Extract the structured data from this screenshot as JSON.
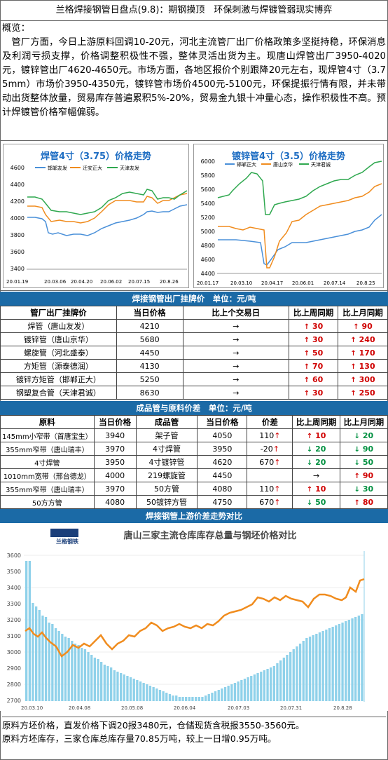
{
  "title": "兰格焊接钢管日盘点(9.8)：期钢摸顶　环保刺激与焊镀管弱现实博弈",
  "overview_label": "概览：",
  "overview_text": "　管厂方面，今日上游原料回调10-20元，河北主流管厂出厂价格政策多坚挺持稳，环保消息及利润亏损支撑，价格调整积极性不强，整体灵活出货为主。现唐山焊管出厂3950-4020元，镀锌管出厂4620-4650元。市场方面，各地区报价个别跟降20元左右，现焊管4寸（3.75mm）市场价3950-4350元，镀锌管市场价4500元-5100元，环保提振行情有限，并未带动出货整体放量，贸易库存普遍累积5%-20%，贸易金九银十冲量心态，操作积极性不高。预计焊镀管价格窄幅偏弱。",
  "chart1": {
    "title": "焊管4寸（3.75）价格走势",
    "legend": [
      "邯郸友发",
      "迁安正大",
      "天津友发"
    ],
    "colors": [
      "#4a90d9",
      "#f08c1e",
      "#2fa84f"
    ],
    "yticks": [
      "4600",
      "4400",
      "4200",
      "4000",
      "3800",
      "3600",
      "3400"
    ],
    "xticks": [
      "20.01.19",
      "20.03.06",
      "20.04.20",
      "20.06.02",
      "20.07.15",
      "20.8.26"
    ]
  },
  "chart2": {
    "title": "镀锌管4寸（3.5）价格走势",
    "legend": [
      "邯郸正大",
      "唐山京华",
      "天津君诚"
    ],
    "colors": [
      "#4a90d9",
      "#f08c1e",
      "#2fa84f"
    ],
    "yticks": [
      "6000",
      "5800",
      "5600",
      "5400",
      "5200",
      "5000",
      "4800",
      "4600",
      "4400"
    ],
    "xticks": [
      "20.01.17",
      "20.03.10",
      "20.04.17",
      "20.06.01",
      "20.07.14",
      "20.8.25"
    ]
  },
  "bar1": "焊接钢管出厂挂牌价　单位：元/吨",
  "table1": {
    "headers": [
      "管厂出厂挂牌价",
      "当日价格",
      "比上个交易日",
      "比上周同期",
      "比上月同期"
    ],
    "rows": [
      {
        "name": "焊管（唐山友发）",
        "price": "4210",
        "day": "→",
        "week": "30",
        "month": "90",
        "wd": "up",
        "md": "up"
      },
      {
        "name": "镀锌管（唐山京华）",
        "price": "5680",
        "day": "→",
        "week": "30",
        "month": "240",
        "wd": "up",
        "md": "up"
      },
      {
        "name": "螺旋管（河北盛泰）",
        "price": "4450",
        "day": "→",
        "week": "50",
        "month": "170",
        "wd": "up",
        "md": "up"
      },
      {
        "name": "方矩管（源泰德润）",
        "price": "4130",
        "day": "→",
        "week": "70",
        "month": "130",
        "wd": "up",
        "md": "up"
      },
      {
        "name": "镀锌方矩管（邯郸正大）",
        "price": "5250",
        "day": "→",
        "week": "60",
        "month": "300",
        "wd": "up",
        "md": "up"
      },
      {
        "name": "钢塑复合管（天津君诚）",
        "price": "8630",
        "day": "→",
        "week": "30",
        "month": "250",
        "wd": "up",
        "md": "up"
      }
    ]
  },
  "bar2": "成品管与原料价差　单位：元/吨",
  "table2": {
    "headers": [
      "原料",
      "当日价格",
      "成品管",
      "当日价格",
      "价差",
      "比上周同期",
      "比上月同期"
    ],
    "rows": [
      {
        "raw": "145mm小窄带（首唐宝生）",
        "rp": "3940",
        "prod": "架子管",
        "pp": "4050",
        "diff": "110",
        "dd": "up",
        "week": "10",
        "wd": "up",
        "month": "20",
        "md": "dn"
      },
      {
        "raw": "355mm窄带（唐山瑞丰）",
        "rp": "3970",
        "prod": "4寸焊管",
        "pp": "3950",
        "diff": "-20",
        "dd": "up",
        "week": "20",
        "wd": "dn",
        "month": "90",
        "md": "dn"
      },
      {
        "raw": "4寸焊管",
        "rp": "3950",
        "prod": "4寸镀锌管",
        "pp": "4620",
        "diff": "670",
        "dd": "up",
        "week": "20",
        "wd": "dn",
        "month": "50",
        "md": "dn"
      },
      {
        "raw": "1010mm宽带（邢台德龙）",
        "rp": "4000",
        "prod": "219螺旋管",
        "pp": "4450",
        "diff": "",
        "dd": "flat",
        "week": "",
        "wd": "flat",
        "month": "90",
        "md": "up"
      },
      {
        "raw": "355mm窄带（唐山瑞丰）",
        "rp": "3970",
        "prod": "50方管",
        "pp": "4080",
        "diff": "110",
        "dd": "up",
        "week": "10",
        "wd": "up",
        "month": "30",
        "md": "dn"
      },
      {
        "raw": "50方方管",
        "rp": "4080",
        "prod": "50镀锌方管",
        "pp": "4750",
        "diff": "670",
        "dd": "up",
        "week": "50",
        "wd": "dn",
        "month": "80",
        "md": "up"
      }
    ]
  },
  "bar3": "焊接钢管上游价差走势对比",
  "chart3": {
    "title": "唐山三家主流仓库库存总量与钢坯价格对比",
    "logo": "兰格钢铁",
    "yticks": [
      "3600",
      "3500",
      "3400",
      "3300",
      "3200",
      "3100",
      "3000",
      "2900",
      "2800",
      "2700"
    ],
    "xticks": [
      "20.03.10",
      "20.04.08",
      "20.05.08",
      "20.06.04",
      "20.07.03",
      "20.07.31",
      "20.8.28"
    ]
  },
  "footer1": "原料方坯价格，直发价格下调20报3480元，仓储现货含税报3550-3560元。",
  "footer2": "原料方坯库存，三家仓库总库存量70.85万吨，较上一日增0.95万吨。"
}
